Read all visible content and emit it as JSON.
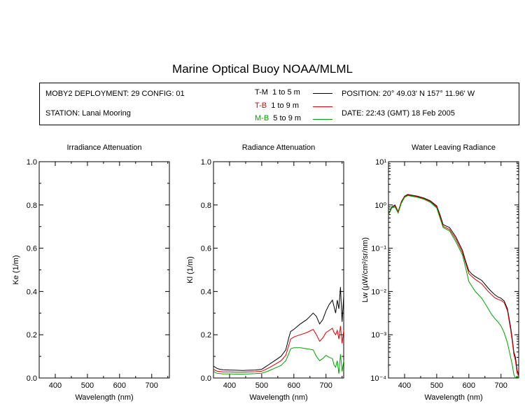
{
  "page": {
    "title": "Marine Optical Buoy NOAA/MLML"
  },
  "info": {
    "deployment": "MOBY2 DEPLOYMENT: 29 CONFIG: 01",
    "station": "STATION: Lanai Mooring",
    "position": "POSITION: 20° 49.03' N   157° 11.96' W",
    "date": "DATE: 22:43 (GMT) 18 Feb 2005",
    "legend": [
      {
        "code": "T-M",
        "range": "1 to 5  m",
        "color": "#000000"
      },
      {
        "code": "T-B",
        "range": "1 to 9  m",
        "color": "#e00000"
      },
      {
        "code": "M-B",
        "range": "5 to 9  m",
        "color": "#00a000"
      }
    ]
  },
  "chart_data": [
    {
      "type": "line",
      "title": "Irradiance Attenuation",
      "xlabel": "Wavelength (nm)",
      "ylabel": "Ke  (1/m)",
      "xlim": [
        350,
        755
      ],
      "ylim": [
        0,
        1.0
      ],
      "xticks": [
        400,
        500,
        600,
        700
      ],
      "yticks": [
        0.0,
        0.2,
        0.4,
        0.6,
        0.8,
        1.0
      ],
      "ytick_labels": [
        "0.0",
        "0.2",
        "0.4",
        "0.6",
        "0.8",
        "1.0"
      ],
      "series": []
    },
    {
      "type": "line",
      "title": "Radiance Attenuation",
      "xlabel": "Wavelength (nm)",
      "ylabel": "Kl  (1/m)",
      "xlim": [
        350,
        755
      ],
      "ylim": [
        0,
        1.0
      ],
      "xticks": [
        400,
        500,
        600,
        700
      ],
      "yticks": [
        0.0,
        0.2,
        0.4,
        0.6,
        0.8,
        1.0
      ],
      "ytick_labels": [
        "0.0",
        "0.2",
        "0.4",
        "0.6",
        "0.8",
        "1.0"
      ],
      "series": [
        {
          "name": "T-M",
          "color": "#000000",
          "x": [
            350,
            360,
            370,
            380,
            400,
            420,
            440,
            460,
            480,
            500,
            520,
            540,
            560,
            575,
            585,
            590,
            600,
            620,
            640,
            660,
            670,
            680,
            690,
            700,
            710,
            720,
            725,
            730,
            735,
            740,
            745,
            750,
            755
          ],
          "y": [
            0.055,
            0.045,
            0.04,
            0.038,
            0.037,
            0.036,
            0.035,
            0.036,
            0.037,
            0.04,
            0.06,
            0.08,
            0.1,
            0.13,
            0.19,
            0.215,
            0.225,
            0.25,
            0.27,
            0.3,
            0.285,
            0.25,
            0.27,
            0.31,
            0.34,
            0.36,
            0.33,
            0.3,
            0.36,
            0.32,
            0.42,
            0.26,
            0.38
          ]
        },
        {
          "name": "T-B",
          "color": "#e00000",
          "x": [
            350,
            360,
            370,
            380,
            400,
            420,
            440,
            460,
            480,
            500,
            520,
            540,
            560,
            575,
            585,
            590,
            600,
            620,
            640,
            660,
            670,
            680,
            690,
            700,
            710,
            720,
            725,
            730,
            735,
            740,
            745,
            750,
            755
          ],
          "y": [
            0.04,
            0.032,
            0.03,
            0.028,
            0.028,
            0.027,
            0.027,
            0.028,
            0.029,
            0.031,
            0.045,
            0.062,
            0.08,
            0.105,
            0.155,
            0.18,
            0.19,
            0.2,
            0.21,
            0.225,
            0.2,
            0.17,
            0.185,
            0.21,
            0.22,
            0.23,
            0.21,
            0.2,
            0.22,
            0.18,
            0.24,
            0.16,
            0.22
          ]
        },
        {
          "name": "M-B",
          "color": "#00a000",
          "x": [
            350,
            360,
            370,
            380,
            400,
            420,
            440,
            460,
            480,
            500,
            520,
            540,
            560,
            575,
            585,
            590,
            600,
            620,
            640,
            660,
            670,
            680,
            690,
            700,
            710,
            720,
            725,
            730,
            735,
            740,
            745,
            750,
            755
          ],
          "y": [
            0.03,
            0.022,
            0.02,
            0.019,
            0.019,
            0.018,
            0.018,
            0.019,
            0.02,
            0.022,
            0.032,
            0.045,
            0.058,
            0.08,
            0.115,
            0.135,
            0.14,
            0.14,
            0.135,
            0.13,
            0.1,
            0.08,
            0.09,
            0.105,
            0.095,
            0.09,
            0.06,
            0.05,
            0.08,
            0.02,
            0.11,
            0.03,
            0.08
          ]
        }
      ]
    },
    {
      "type": "line",
      "title": "Water Leaving Radiance",
      "xlabel": "Wavelength (nm)",
      "ylabel": "Lw  (µW/cm²/sr/nm)",
      "yscale": "log",
      "xlim": [
        350,
        755
      ],
      "ylim": [
        0.0001,
        10
      ],
      "xticks": [
        400,
        500,
        600,
        700
      ],
      "ytick_labels": [
        "10⁻⁴",
        "10⁻³",
        "10⁻²",
        "10⁻¹",
        "10⁰",
        "10¹"
      ],
      "series": [
        {
          "name": "T-M",
          "color": "#000000",
          "x": [
            350,
            360,
            370,
            380,
            390,
            400,
            410,
            420,
            440,
            460,
            480,
            500,
            510,
            520,
            540,
            560,
            580,
            590,
            600,
            610,
            620,
            640,
            660,
            670,
            680,
            690,
            700,
            710,
            720,
            730,
            735,
            740,
            745,
            750,
            755
          ],
          "y": [
            0.6,
            0.9,
            1.0,
            0.7,
            1.2,
            1.6,
            1.75,
            1.7,
            1.6,
            1.45,
            1.25,
            0.95,
            0.6,
            0.35,
            0.3,
            0.18,
            0.09,
            0.05,
            0.03,
            0.025,
            0.022,
            0.018,
            0.012,
            0.01,
            0.0085,
            0.0075,
            0.007,
            0.006,
            0.004,
            0.0015,
            0.0008,
            0.0004,
            0.0003,
            0.00015,
            0.00012
          ]
        },
        {
          "name": "T-B",
          "color": "#e00000",
          "x": [
            350,
            360,
            370,
            380,
            390,
            400,
            410,
            420,
            440,
            460,
            480,
            500,
            510,
            520,
            540,
            560,
            580,
            590,
            600,
            610,
            620,
            640,
            660,
            670,
            680,
            690,
            700,
            710,
            720,
            730,
            735,
            740,
            745,
            750,
            755
          ],
          "y": [
            0.6,
            0.85,
            0.95,
            0.7,
            1.15,
            1.55,
            1.7,
            1.65,
            1.55,
            1.4,
            1.2,
            0.9,
            0.55,
            0.32,
            0.27,
            0.16,
            0.08,
            0.045,
            0.026,
            0.022,
            0.019,
            0.015,
            0.01,
            0.0085,
            0.0072,
            0.0066,
            0.0062,
            0.0055,
            0.0036,
            0.0013,
            0.0007,
            0.00035,
            0.00025,
            0.00013,
            0.00011
          ]
        },
        {
          "name": "M-B",
          "color": "#00a000",
          "x": [
            350,
            360,
            370,
            380,
            390,
            400,
            410,
            420,
            440,
            460,
            480,
            500,
            510,
            520,
            540,
            560,
            580,
            590,
            600,
            610,
            620,
            640,
            660,
            670,
            680,
            690,
            700,
            710,
            720,
            730,
            735,
            740,
            745,
            750,
            755
          ],
          "y": [
            0.6,
            0.85,
            0.9,
            0.65,
            1.1,
            1.5,
            1.65,
            1.6,
            1.5,
            1.35,
            1.15,
            0.85,
            0.5,
            0.3,
            0.25,
            0.14,
            0.07,
            0.035,
            0.017,
            0.013,
            0.01,
            0.007,
            0.004,
            0.003,
            0.0024,
            0.002,
            0.0016,
            0.0011,
            0.00065,
            0.0003,
            0.0002,
            0.00012,
            0.0001,
            0.00011,
            0.0001
          ]
        }
      ]
    }
  ]
}
